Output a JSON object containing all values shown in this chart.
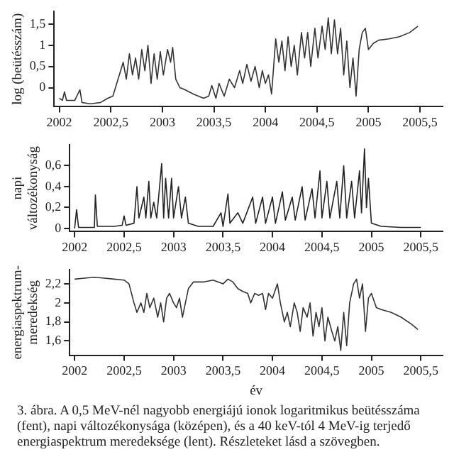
{
  "chart_data": [
    {
      "type": "line",
      "ylabel": "log (beütésszám)",
      "xlim": [
        2001.95,
        2005.72
      ],
      "ylim": [
        -0.45,
        1.8
      ],
      "xticks": [
        2002,
        {
          "value": 2002.5,
          "label": "2002,5"
        },
        2003,
        {
          "value": 2003.5,
          "label": "2003,5"
        },
        2004,
        {
          "value": 2004.5,
          "label": "2004,5"
        },
        2005,
        {
          "value": 2005.5,
          "label": "2005,5"
        }
      ],
      "yticks": [
        0,
        {
          "value": 0.5,
          "label": "0,5"
        },
        1,
        {
          "value": 1.5,
          "label": "1,5"
        }
      ],
      "grid": false,
      "legend": false,
      "marker": "none",
      "line_style": "solid",
      "series": [
        {
          "color": "#333333",
          "x": [
            2002.0,
            2002.03,
            2002.05,
            2002.07,
            2002.15,
            2002.2,
            2002.22,
            2002.3,
            2002.4,
            2002.47,
            2002.52,
            2002.57,
            2002.62,
            2002.65,
            2002.68,
            2002.71,
            2002.74,
            2002.77,
            2002.8,
            2002.83,
            2002.86,
            2002.89,
            2002.92,
            2002.95,
            2002.98,
            2003.01,
            2003.05,
            2003.08,
            2003.1,
            2003.13,
            2003.17,
            2003.22,
            2003.3,
            2003.4,
            2003.45,
            2003.48,
            2003.52,
            2003.55,
            2003.6,
            2003.65,
            2003.7,
            2003.75,
            2003.78,
            2003.82,
            2003.86,
            2003.9,
            2003.94,
            2003.97,
            2004.0,
            2004.03,
            2004.06,
            2004.1,
            2004.13,
            2004.16,
            2004.19,
            2004.22,
            2004.25,
            2004.28,
            2004.31,
            2004.35,
            2004.38,
            2004.41,
            2004.44,
            2004.48,
            2004.51,
            2004.55,
            2004.58,
            2004.61,
            2004.64,
            2004.67,
            2004.7,
            2004.73,
            2004.76,
            2004.79,
            2004.82,
            2004.85,
            2004.88,
            2004.91,
            2004.94,
            2004.97,
            2005.0,
            2005.05,
            2005.1,
            2005.2,
            2005.3,
            2005.4,
            2005.48
          ],
          "values": [
            -0.25,
            -0.3,
            -0.1,
            -0.3,
            -0.3,
            -0.05,
            -0.35,
            -0.38,
            -0.35,
            -0.25,
            -0.2,
            0.2,
            0.6,
            0.2,
            0.8,
            0.3,
            0.7,
            0.2,
            0.9,
            0.4,
            1.0,
            0.1,
            0.8,
            0.2,
            0.85,
            0.3,
            0.9,
            0.6,
            0.95,
            0.2,
            0.0,
            -0.05,
            -0.15,
            -0.25,
            -0.2,
            0.05,
            -0.25,
            0.1,
            -0.2,
            0.2,
            0.0,
            0.4,
            0.1,
            0.55,
            0.15,
            0.5,
            0.0,
            0.4,
            0.1,
            0.3,
            -0.15,
            1.15,
            0.6,
            1.1,
            0.4,
            1.2,
            0.5,
            1.0,
            0.3,
            1.3,
            0.7,
            1.3,
            0.5,
            1.4,
            0.7,
            1.45,
            0.9,
            1.65,
            0.8,
            1.6,
            0.8,
            1.4,
            0.3,
            1.1,
            0.0,
            0.7,
            -0.2,
            0.9,
            1.3,
            1.4,
            0.9,
            1.05,
            1.12,
            1.15,
            1.2,
            1.3,
            1.45
          ]
        }
      ]
    },
    {
      "type": "line",
      "ylabel": "napi változékonyság",
      "xlim": [
        2001.95,
        2005.72
      ],
      "ylim": [
        -0.03,
        0.8
      ],
      "xticks": [
        2002,
        {
          "value": 2002.5,
          "label": "2002,5"
        },
        2003,
        {
          "value": 2003.5,
          "label": "2003,5"
        },
        2004,
        {
          "value": 2004.5,
          "label": "2004,5"
        },
        2005,
        {
          "value": 2005.5,
          "label": "2005,5"
        }
      ],
      "yticks": [
        0,
        {
          "value": 0.2,
          "label": "0,2"
        },
        {
          "value": 0.4,
          "label": "0,4"
        },
        {
          "value": 0.6,
          "label": "0,6"
        }
      ],
      "grid": false,
      "legend": false,
      "marker": "none",
      "line_style": "solid",
      "series": [
        {
          "color": "#222222",
          "x": [
            2002.0,
            2002.02,
            2002.04,
            2002.2,
            2002.21,
            2002.23,
            2002.4,
            2002.48,
            2002.5,
            2002.52,
            2002.6,
            2002.63,
            2002.65,
            2002.7,
            2002.72,
            2002.75,
            2002.77,
            2002.8,
            2002.83,
            2002.88,
            2002.9,
            2002.92,
            2002.95,
            2002.98,
            2003.0,
            2003.05,
            2003.08,
            2003.12,
            2003.15,
            2003.25,
            2003.4,
            2003.48,
            2003.5,
            2003.55,
            2003.57,
            2003.65,
            2003.7,
            2003.8,
            2003.83,
            2003.9,
            2003.93,
            2004.0,
            2004.03,
            2004.1,
            2004.13,
            2004.2,
            2004.23,
            2004.3,
            2004.33,
            2004.4,
            2004.43,
            2004.48,
            2004.5,
            2004.55,
            2004.58,
            2004.65,
            2004.68,
            2004.72,
            2004.75,
            2004.8,
            2004.83,
            2004.88,
            2004.9,
            2004.93,
            2004.95,
            2004.97,
            2005.0,
            2005.1,
            2005.3,
            2005.5
          ],
          "values": [
            0,
            0.18,
            0.01,
            0.01,
            0.32,
            0.02,
            0.02,
            0.03,
            0.12,
            0.03,
            0.05,
            0.4,
            0.1,
            0.3,
            0.1,
            0.45,
            0.1,
            0.25,
            0.1,
            0.62,
            0.1,
            0.48,
            0.1,
            0.48,
            0.1,
            0.4,
            0.1,
            0.3,
            0.05,
            0.02,
            0.02,
            0.15,
            0.02,
            0.33,
            0.05,
            0.15,
            0.05,
            0.3,
            0.05,
            0.3,
            0.05,
            0.3,
            0.05,
            0.35,
            0.08,
            0.3,
            0.08,
            0.4,
            0.08,
            0.38,
            0.1,
            0.55,
            0.1,
            0.45,
            0.1,
            0.45,
            0.1,
            0.6,
            0.1,
            0.45,
            0.1,
            0.55,
            0.15,
            0.76,
            0.2,
            0.48,
            0.05,
            0.02,
            0.01,
            0.01
          ]
        }
      ]
    },
    {
      "type": "line",
      "ylabel": "energiaspektrum-meredekség",
      "xlabel": "év",
      "xlim": [
        2001.95,
        2005.72
      ],
      "ylim": [
        1.45,
        2.35
      ],
      "xticks": [
        2002,
        {
          "value": 2002.5,
          "label": "2002,5"
        },
        2003,
        {
          "value": 2003.5,
          "label": "2003,5"
        },
        2004,
        {
          "value": 2004.5,
          "label": "2004,5"
        },
        2005,
        {
          "value": 2005.5,
          "label": "2005,5"
        }
      ],
      "yticks": [
        {
          "value": 1.6,
          "label": "1,6"
        },
        {
          "value": 1.8,
          "label": "1,8"
        },
        2,
        {
          "value": 2.2,
          "label": "2,2"
        }
      ],
      "grid": false,
      "legend": false,
      "marker": "none",
      "line_style": "solid",
      "annotations": [
        "3. ábra. A 0,5 MeV-nél nagyobb energiájú ionok logaritmikus beütésszáma (fent), napi változékonysága (középen), és a 40 keV-tól 4 MeV-ig terjedő energiaspektrum meredeksége (lent). Részleteket lásd a szövegben."
      ],
      "series": [
        {
          "color": "#333333",
          "x": [
            2002.0,
            2002.1,
            2002.2,
            2002.3,
            2002.4,
            2002.5,
            2002.55,
            2002.6,
            2002.63,
            2002.67,
            2002.7,
            2002.73,
            2002.76,
            2002.8,
            2002.84,
            2002.87,
            2002.9,
            2002.93,
            2002.96,
            2003.0,
            2003.03,
            2003.06,
            2003.09,
            2003.12,
            2003.15,
            2003.2,
            2003.3,
            2003.4,
            2003.5,
            2003.55,
            2003.6,
            2003.65,
            2003.7,
            2003.75,
            2003.78,
            2003.82,
            2003.86,
            2003.9,
            2003.93,
            2003.96,
            2004.0,
            2004.05,
            2004.08,
            2004.12,
            2004.15,
            2004.18,
            2004.22,
            2004.25,
            2004.28,
            2004.31,
            2004.35,
            2004.38,
            2004.41,
            2004.44,
            2004.47,
            2004.5,
            2004.53,
            2004.56,
            2004.6,
            2004.63,
            2004.66,
            2004.69,
            2004.72,
            2004.75,
            2004.78,
            2004.82,
            2004.85,
            2004.88,
            2004.91,
            2004.94,
            2004.97,
            2005.0,
            2005.05,
            2005.1,
            2005.2,
            2005.3,
            2005.4,
            2005.47
          ],
          "values": [
            2.25,
            2.26,
            2.27,
            2.26,
            2.25,
            2.24,
            2.2,
            2.0,
            1.9,
            2.0,
            1.9,
            2.1,
            1.95,
            2.05,
            1.85,
            2.0,
            1.8,
            2.05,
            2.1,
            2.0,
            1.95,
            2.05,
            1.85,
            2.0,
            2.15,
            2.22,
            2.22,
            2.24,
            2.2,
            2.25,
            2.22,
            2.15,
            2.12,
            2.1,
            2.0,
            2.1,
            2.08,
            2.1,
            1.93,
            2.1,
            2.05,
            2.2,
            2.0,
            1.8,
            1.9,
            1.75,
            2.0,
            1.9,
            1.7,
            1.95,
            1.85,
            2.0,
            1.65,
            1.9,
            1.75,
            1.95,
            1.6,
            1.85,
            1.7,
            1.6,
            1.75,
            1.5,
            1.9,
            1.55,
            2.0,
            2.2,
            2.25,
            2.05,
            2.2,
            1.7,
            2.05,
            2.1,
            1.95,
            1.93,
            1.9,
            1.85,
            1.78,
            1.72
          ]
        }
      ]
    }
  ]
}
